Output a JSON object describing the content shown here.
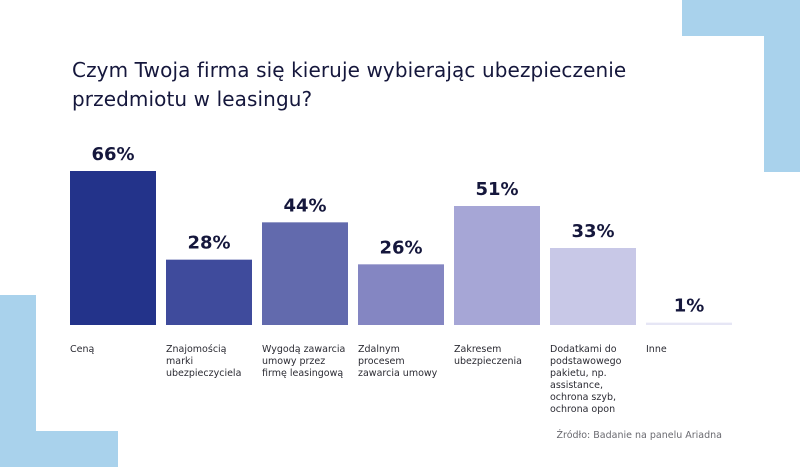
{
  "title": {
    "line1": "Czym Twoja firma się kieruje wybierając ubezpieczenie",
    "line2": "przedmiotu w leasingu?"
  },
  "source": "Źródło: Badanie na panelu Ariadna",
  "colors": {
    "text": "#15173c",
    "label": "#2b2b33",
    "bars": [
      "#23338a",
      "#3f4b9c",
      "#626aad",
      "#8486c2",
      "#a6a6d6",
      "#c8c8e7",
      "#e6e6f5"
    ],
    "decoration": "#a9d2ec"
  },
  "chart_data": {
    "type": "bar",
    "categories": [
      [
        "Ceną"
      ],
      [
        "Znajomością",
        "marki",
        "ubezpieczyciela"
      ],
      [
        "Wygodą zawarcia",
        "umowy przez",
        "firmę leasingową"
      ],
      [
        "Zdalnym",
        "procesem",
        "zawarcia umowy"
      ],
      [
        "Zakresem",
        "ubezpieczenia"
      ],
      [
        "Dodatkami do",
        "podstawowego",
        "pakietu, np.",
        "assistance,",
        "ochrona szyb,",
        "ochrona opon"
      ],
      [
        "Inne"
      ]
    ],
    "values": [
      66,
      28,
      44,
      26,
      51,
      33,
      1
    ],
    "value_labels": [
      "66%",
      "28%",
      "44%",
      "26%",
      "51%",
      "33%",
      "1%"
    ],
    "ylim": [
      0,
      66
    ],
    "xlabel": "",
    "ylabel": "",
    "grid": false,
    "legend": "none"
  }
}
